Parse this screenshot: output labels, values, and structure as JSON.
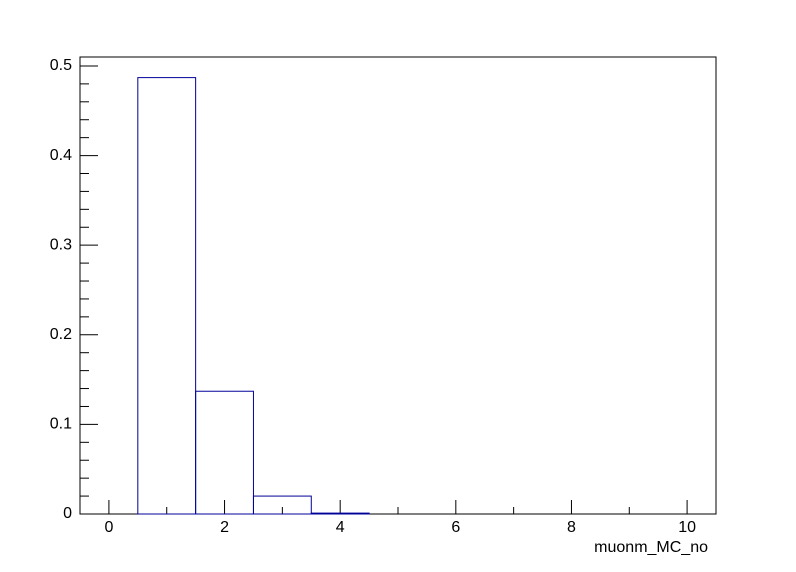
{
  "chart_data": {
    "type": "histogram",
    "x_label": "muonm_MC_no",
    "bins": [
      -0.5,
      0.5,
      1.5,
      2.5,
      3.5,
      4.5,
      5.5,
      6.5,
      7.5,
      8.5,
      9.5,
      10.5
    ],
    "values": [
      0,
      0.487,
      0.137,
      0.02,
      0.001,
      0,
      0,
      0,
      0,
      0,
      0
    ],
    "color": "#000099",
    "xlim": [
      -0.5,
      10.5
    ],
    "xticks": [
      0,
      2,
      4,
      6,
      8,
      10
    ],
    "x_minor_ticks": [
      1,
      3,
      5,
      7,
      9
    ],
    "ylim": [
      0,
      0.51
    ],
    "yticks": [
      0,
      0.1,
      0.2,
      0.3,
      0.4,
      0.5
    ],
    "y_minor_ticks": [
      0.02,
      0.04,
      0.06,
      0.08,
      0.12,
      0.14,
      0.16,
      0.18,
      0.22,
      0.24,
      0.26,
      0.28,
      0.32,
      0.34,
      0.36,
      0.38,
      0.42,
      0.44,
      0.46,
      0.48
    ],
    "grid": false
  }
}
